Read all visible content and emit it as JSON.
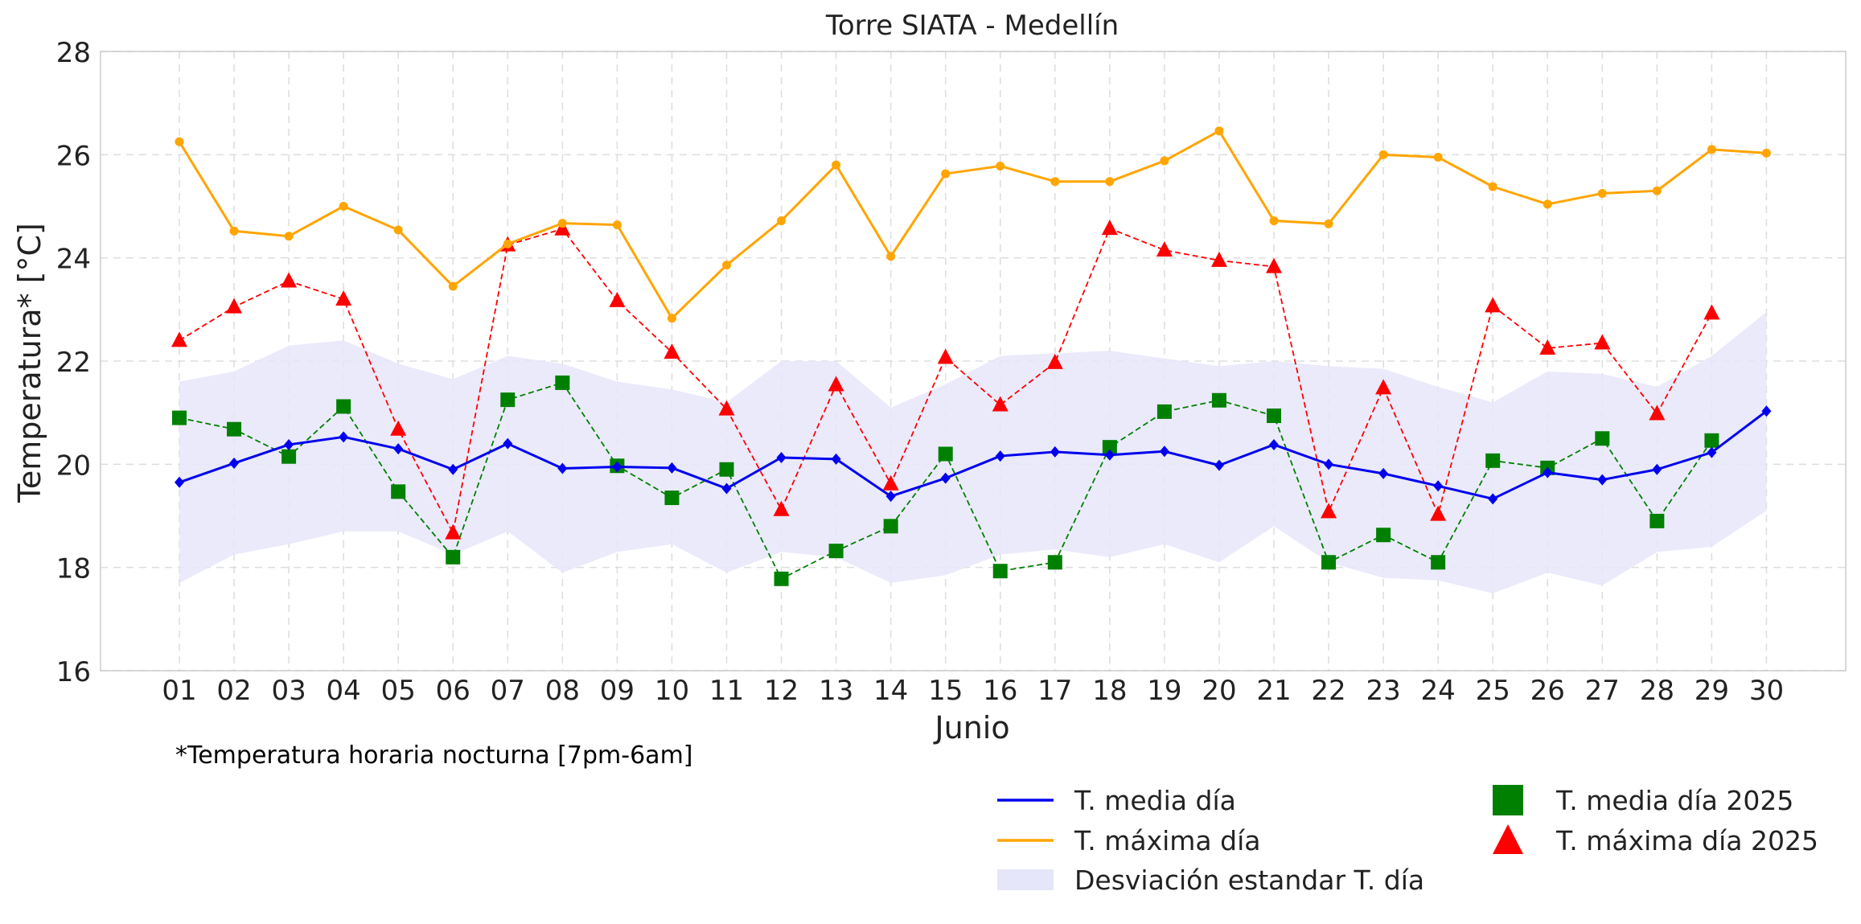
{
  "chart_data": {
    "type": "line",
    "title": "Torre SIATA - Medellín",
    "xlabel": "Junio",
    "ylabel": "Temperatura* [°C]",
    "footnote": "*Temperatura horaria nocturna [7pm-6am]",
    "ylim": [
      16,
      28
    ],
    "yticks": [
      "16",
      "18",
      "20",
      "22",
      "24",
      "26",
      "28"
    ],
    "grid": true,
    "legend_position": "bottom-right",
    "categories": [
      "01",
      "02",
      "03",
      "04",
      "05",
      "06",
      "07",
      "08",
      "09",
      "10",
      "11",
      "12",
      "13",
      "14",
      "15",
      "16",
      "17",
      "18",
      "19",
      "20",
      "21",
      "22",
      "23",
      "24",
      "25",
      "26",
      "27",
      "28",
      "29",
      "30"
    ],
    "band": {
      "name": "Desviación estandar T. día",
      "color": "#e6e6fa",
      "upper": [
        21.6,
        21.8,
        22.3,
        22.4,
        21.95,
        21.65,
        22.1,
        21.95,
        21.6,
        21.45,
        21.2,
        22.0,
        22.0,
        21.1,
        21.55,
        22.1,
        22.15,
        22.2,
        22.05,
        21.9,
        22.0,
        21.9,
        21.85,
        21.5,
        21.2,
        21.8,
        21.75,
        21.5,
        22.1,
        22.95
      ],
      "lower": [
        17.7,
        18.25,
        18.45,
        18.7,
        18.7,
        18.25,
        18.7,
        17.9,
        18.3,
        18.45,
        17.9,
        18.3,
        18.2,
        17.7,
        17.85,
        18.25,
        18.35,
        18.2,
        18.45,
        18.1,
        18.8,
        18.1,
        17.8,
        17.75,
        17.5,
        17.9,
        17.65,
        18.3,
        18.4,
        19.1
      ]
    },
    "series": [
      {
        "name": "T. media día",
        "color": "#0000ee",
        "style": "solid",
        "marker": "diamond",
        "values": [
          19.65,
          20.02,
          20.38,
          20.53,
          20.3,
          19.9,
          20.4,
          19.92,
          19.95,
          19.93,
          19.53,
          20.13,
          20.1,
          19.38,
          19.73,
          20.16,
          20.24,
          20.18,
          20.25,
          19.98,
          20.38,
          20.0,
          19.82,
          19.58,
          19.33,
          19.84,
          19.7,
          19.9,
          20.23,
          21.03
        ]
      },
      {
        "name": "T. máxima día",
        "color": "#ffa500",
        "style": "solid",
        "marker": "dot",
        "values": [
          26.25,
          24.52,
          24.42,
          25.0,
          24.54,
          23.45,
          24.27,
          24.67,
          24.64,
          22.83,
          23.86,
          24.72,
          25.8,
          24.03,
          25.63,
          25.78,
          25.48,
          25.48,
          25.88,
          26.46,
          24.72,
          24.66,
          26.0,
          25.95,
          25.38,
          25.04,
          25.25,
          25.3,
          26.1,
          26.03
        ]
      },
      {
        "name": "T. media día 2025",
        "color": "#008000",
        "style": "dashed",
        "marker": "square",
        "values": [
          20.9,
          20.68,
          20.15,
          21.12,
          19.47,
          18.2,
          21.25,
          21.58,
          19.97,
          19.35,
          19.9,
          17.78,
          18.32,
          18.8,
          20.2,
          17.93,
          18.1,
          20.33,
          21.02,
          21.24,
          20.94,
          18.1,
          18.63,
          18.1,
          20.07,
          19.93,
          20.5,
          18.9,
          20.46,
          null
        ]
      },
      {
        "name": "T. máxima día 2025",
        "color": "#ff0000",
        "style": "dashed",
        "marker": "triangle",
        "values": [
          22.4,
          23.05,
          23.55,
          23.2,
          20.68,
          18.67,
          24.25,
          24.56,
          23.17,
          22.17,
          21.07,
          19.12,
          21.54,
          19.62,
          22.07,
          21.15,
          21.97,
          24.57,
          24.15,
          23.95,
          23.83,
          19.08,
          21.48,
          19.03,
          23.07,
          22.25,
          22.35,
          20.98,
          22.93,
          null
        ]
      }
    ]
  }
}
